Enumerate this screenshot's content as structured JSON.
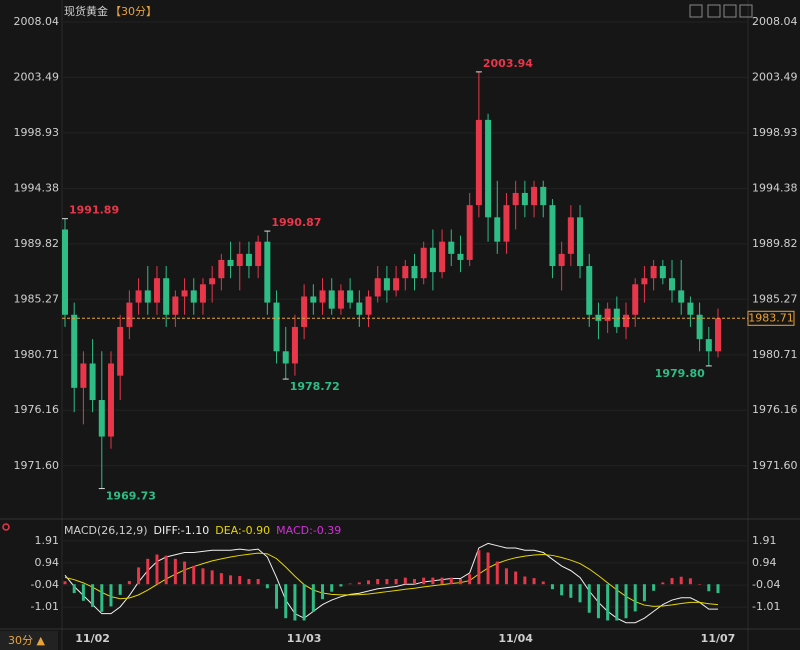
{
  "header": {
    "title": "现货黄金",
    "period": "【30分】"
  },
  "footer": {
    "period": "30分 ▲"
  },
  "chart_data": [
    {
      "type": "candlestick",
      "categories": [
        null,
        null,
        null,
        "11/02",
        null,
        null,
        null,
        null,
        null,
        null,
        null,
        null,
        null,
        null,
        null,
        null,
        null,
        null,
        null,
        null,
        null,
        null,
        null,
        null,
        null,
        null,
        "11/03",
        null,
        null,
        null,
        null,
        null,
        null,
        null,
        null,
        null,
        null,
        null,
        null,
        null,
        null,
        null,
        null,
        null,
        null,
        null,
        null,
        null,
        null,
        "11/04",
        null,
        null,
        null,
        null,
        null,
        null,
        null,
        null,
        null,
        null,
        null,
        null,
        null,
        null,
        null,
        null,
        null,
        null,
        null,
        null,
        null,
        "11/07"
      ],
      "open": [
        1991,
        1984,
        1978,
        1980,
        1977,
        1974,
        1979,
        1983,
        1985,
        1986,
        1985,
        1987,
        1984,
        1985.5,
        1986,
        1985,
        1986.5,
        1987,
        1988.5,
        1988,
        1989,
        1988,
        1990,
        1985,
        1981,
        1980,
        1983,
        1985.5,
        1985,
        1986,
        1984.5,
        1986,
        1985,
        1984,
        1985.5,
        1987,
        1986,
        1987,
        1988,
        1987,
        1989.5,
        1987.5,
        1990,
        1989,
        1988.5,
        1993,
        2000,
        1992,
        1990,
        1993,
        1994,
        1993,
        1994.5,
        1993,
        1988,
        1989,
        1992,
        1988,
        1984,
        1983.5,
        1984.5,
        1983,
        1984,
        1986.5,
        1987,
        1988,
        1987,
        1986,
        1985,
        1984,
        1982,
        1981
      ],
      "high": [
        1991.89,
        1985,
        1981,
        1982,
        1981,
        1981,
        1984,
        1986,
        1987,
        1988,
        1988,
        1988,
        1986,
        1987,
        1987,
        1987,
        1988,
        1989,
        1990,
        1990,
        1990,
        1990.5,
        1990.87,
        1986,
        1983,
        1984,
        1986.5,
        1986.5,
        1987,
        1987,
        1986.5,
        1987,
        1986,
        1986,
        1988,
        1988,
        1988,
        1988.5,
        1989,
        1990,
        1991,
        1991,
        1991,
        1990.5,
        1994,
        2003.94,
        2000.5,
        1995,
        1994,
        1995,
        1995,
        1995,
        1995,
        1993.5,
        1990,
        1993,
        1993,
        1989,
        1985,
        1985,
        1985.5,
        1985,
        1987,
        1988,
        1988.5,
        1988.5,
        1988.5,
        1988.5,
        1985.5,
        1985,
        1983,
        1984.5
      ],
      "low": [
        1983,
        1976,
        1975,
        1976,
        1969.73,
        1973,
        1977,
        1982,
        1984,
        1984,
        1984,
        1983,
        1983,
        1984,
        1984,
        1984,
        1985,
        1986,
        1987,
        1986,
        1987,
        1987,
        1984,
        1980,
        1978.72,
        1979,
        1982,
        1984,
        1984,
        1984,
        1984,
        1984.5,
        1983,
        1983,
        1985,
        1985,
        1985.5,
        1986,
        1986,
        1986.5,
        1986,
        1987,
        1988,
        1987.5,
        1988,
        1992,
        1990,
        1989,
        1989,
        1991,
        1992,
        1992,
        1992,
        1987,
        1986,
        1988,
        1987,
        1983,
        1982,
        1982.5,
        1982.5,
        1982,
        1983,
        1985,
        1986,
        1986.5,
        1985,
        1984,
        1983,
        1981,
        1979.8,
        1980.5
      ],
      "close": [
        1984,
        1978,
        1980,
        1977,
        1974,
        1980,
        1983,
        1985,
        1986,
        1985,
        1987,
        1984,
        1985.5,
        1986,
        1985,
        1986.5,
        1987,
        1988.5,
        1988,
        1989,
        1988,
        1990,
        1985,
        1981,
        1980,
        1983,
        1985.5,
        1985,
        1986,
        1984.5,
        1986,
        1985,
        1984,
        1985.5,
        1987,
        1986,
        1987,
        1988,
        1987,
        1989.5,
        1987.5,
        1990,
        1989,
        1988.5,
        1993,
        2000,
        1992,
        1990,
        1993,
        1994,
        1993,
        1994.5,
        1993,
        1988,
        1989,
        1992,
        1988,
        1984,
        1983.5,
        1984.5,
        1983,
        1984,
        1986.5,
        1987,
        1988,
        1987,
        1986,
        1985,
        1984,
        1982,
        1981,
        1983.71
      ],
      "high_labels": [
        "1991.89",
        null,
        null,
        null,
        null,
        null,
        null,
        null,
        null,
        null,
        null,
        null,
        null,
        null,
        null,
        null,
        null,
        null,
        null,
        null,
        null,
        null,
        "1990.87",
        null,
        null,
        null,
        null,
        null,
        null,
        null,
        null,
        null,
        null,
        null,
        null,
        null,
        null,
        null,
        null,
        null,
        null,
        null,
        null,
        null,
        null,
        "2003.94",
        null,
        null,
        null,
        null,
        null,
        null,
        null,
        null,
        null,
        null,
        null,
        null,
        null,
        null,
        null,
        null,
        null,
        null,
        null,
        null,
        null,
        null,
        null,
        null,
        null,
        null
      ],
      "low_labels": [
        null,
        null,
        null,
        null,
        "1969.73",
        null,
        null,
        null,
        null,
        null,
        null,
        null,
        null,
        null,
        null,
        null,
        null,
        null,
        null,
        null,
        null,
        null,
        null,
        null,
        "1978.72",
        null,
        null,
        null,
        null,
        null,
        null,
        null,
        null,
        null,
        null,
        null,
        null,
        null,
        null,
        null,
        null,
        null,
        null,
        null,
        null,
        null,
        null,
        null,
        null,
        null,
        null,
        null,
        null,
        null,
        null,
        null,
        null,
        null,
        null,
        null,
        null,
        null,
        null,
        null,
        null,
        null,
        null,
        null,
        null,
        null,
        "1979.80",
        null
      ],
      "up_color": "#e8364a",
      "down_color": "#2ebd85",
      "price_line_color": "#e8a33a",
      "ylim": [
        1967.56,
        2008.61
      ],
      "yticks": [
        2008.04,
        2003.49,
        1998.93,
        1994.38,
        1989.82,
        1985.27,
        1980.71,
        1976.16,
        {
          "value": 1971.6,
          "label": "1971.60"
        }
      ]
    },
    {
      "type": "macd",
      "title": "MACD(26,12,9)",
      "ylim": [
        -1.8,
        2.26
      ],
      "yticks": [
        1.91,
        0.94,
        -0.04,
        -1.01
      ],
      "up_color": "#e8364a",
      "down_color": "#2ebd85",
      "series": [
        {
          "name": "DIFF",
          "label": "DIFF:-1.10",
          "color": "#f0f0f0",
          "values": [
            0.4,
            -0.1,
            -0.5,
            -0.9,
            -1.3,
            -1.3,
            -1.0,
            -0.5,
            0.1,
            0.6,
            1.0,
            1.2,
            1.3,
            1.4,
            1.4,
            1.45,
            1.5,
            1.5,
            1.5,
            1.55,
            1.5,
            1.55,
            1.2,
            0.3,
            -0.7,
            -1.3,
            -1.5,
            -1.2,
            -0.9,
            -0.7,
            -0.55,
            -0.45,
            -0.4,
            -0.3,
            -0.2,
            -0.15,
            -0.1,
            0,
            0,
            0.1,
            0.15,
            0.2,
            0.25,
            0.25,
            0.5,
            1.6,
            1.8,
            1.7,
            1.6,
            1.6,
            1.5,
            1.5,
            1.4,
            1.1,
            0.8,
            0.6,
            0.3,
            -0.3,
            -0.8,
            -1.2,
            -1.5,
            -1.7,
            -1.7,
            -1.5,
            -1.2,
            -0.9,
            -0.7,
            -0.6,
            -0.6,
            -0.8,
            -1.1,
            -1.1
          ]
        },
        {
          "name": "DEA",
          "label": "DEA:-0.90",
          "color": "#e6d600",
          "values": [
            0.3,
            0.2,
            0.06,
            -0.13,
            -0.36,
            -0.55,
            -0.64,
            -0.61,
            -0.47,
            -0.26,
            -0.01,
            0.23,
            0.44,
            0.63,
            0.78,
            0.91,
            1.03,
            1.12,
            1.2,
            1.27,
            1.32,
            1.37,
            1.34,
            1.13,
            0.76,
            0.35,
            -0.02,
            -0.26,
            -0.39,
            -0.45,
            -0.47,
            -0.47,
            -0.46,
            -0.43,
            -0.38,
            -0.33,
            -0.28,
            -0.22,
            -0.18,
            -0.12,
            -0.07,
            -0.02,
            0.03,
            0.07,
            0.16,
            0.45,
            0.72,
            0.92,
            1.06,
            1.17,
            1.24,
            1.29,
            1.31,
            1.27,
            1.18,
            1.06,
            0.91,
            0.67,
            0.38,
            0.06,
            -0.25,
            -0.54,
            -0.77,
            -0.92,
            -0.98,
            -0.96,
            -0.91,
            -0.85,
            -0.8,
            -0.8,
            -0.86,
            -0.9
          ]
        },
        {
          "name": "MACD",
          "label": "MACD:-0.39",
          "color": "#d030d8",
          "values": [
            0.13,
            -0.39,
            -0.73,
            -1.0,
            -1.22,
            -0.98,
            -0.47,
            0.14,
            0.74,
            1.12,
            1.31,
            1.26,
            1.12,
            1.0,
            0.81,
            0.7,
            0.61,
            0.49,
            0.39,
            0.36,
            0.23,
            0.23,
            -0.18,
            -1.08,
            -1.5,
            -1.6,
            -1.6,
            -1.22,
            -0.66,
            -0.33,
            -0.1,
            0.03,
            0.08,
            0.17,
            0.23,
            0.23,
            0.23,
            0.29,
            0.23,
            0.29,
            0.29,
            0.29,
            0.29,
            0.23,
            0.44,
            1.5,
            1.4,
            1.0,
            0.7,
            0.56,
            0.34,
            0.27,
            0.12,
            -0.22,
            -0.49,
            -0.6,
            -0.8,
            -1.26,
            -1.5,
            -1.6,
            -1.6,
            -1.5,
            -1.2,
            -0.75,
            -0.29,
            0.08,
            0.27,
            0.33,
            0.26,
            0.0,
            -0.31,
            -0.39
          ]
        }
      ]
    }
  ]
}
